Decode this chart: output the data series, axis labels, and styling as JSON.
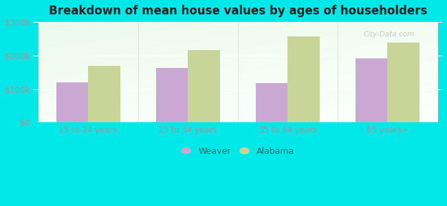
{
  "title": "Breakdown of mean house values by ages of householders",
  "categories": [
    "15 to 24 years",
    "25 to 34 years",
    "35 to 64 years",
    "65 years+"
  ],
  "weaver_values": [
    120000,
    163000,
    118000,
    192000
  ],
  "alabama_values": [
    168000,
    215000,
    258000,
    238000
  ],
  "ylim": [
    0,
    300000
  ],
  "yticks": [
    0,
    100000,
    200000,
    300000
  ],
  "ytick_labels": [
    "$0",
    "$100k",
    "$200k",
    "$300k"
  ],
  "weaver_color": "#c9a8d4",
  "alabama_color": "#c8d498",
  "background_color": "#00e8e8",
  "bar_width": 0.32,
  "legend_weaver": "Weaver",
  "legend_alabama": "Alabama",
  "watermark": "City-Data.com",
  "tick_color": "#999999",
  "label_color": "#336666",
  "title_color": "#222222"
}
